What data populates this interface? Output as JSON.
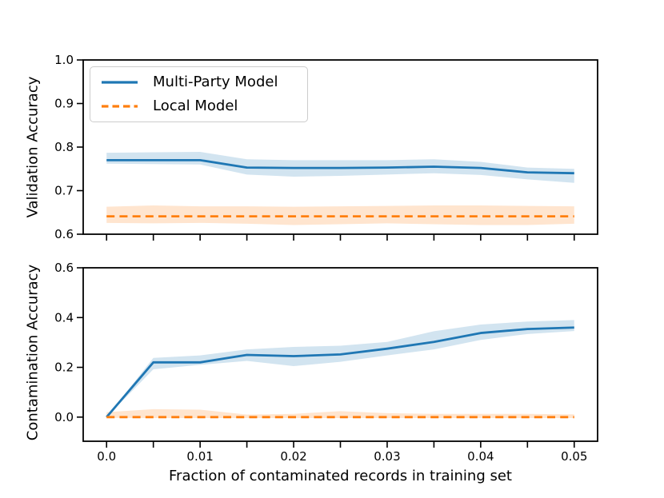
{
  "figure": {
    "background": "#ffffff",
    "text_color": "#000000",
    "spine_color": "#000000"
  },
  "chart_data": [
    {
      "type": "line",
      "title": "",
      "xlabel": "",
      "ylabel": "Validation Accuracy",
      "grid": false,
      "legend_position": "upper left",
      "xlim": [
        -0.0025,
        0.0525
      ],
      "ylim": [
        0.6,
        1.0
      ],
      "x": [
        0,
        0.005,
        0.01,
        0.015,
        0.02,
        0.025,
        0.03,
        0.035,
        0.04,
        0.045,
        0.05
      ],
      "xticks": {
        "values": [
          0,
          0.005,
          0.01,
          0.015,
          0.02,
          0.025,
          0.03,
          0.035,
          0.04,
          0.045,
          0.05
        ],
        "labels": [
          "",
          "",
          "",
          "",
          "",
          "",
          "",
          "",
          "",
          "",
          ""
        ]
      },
      "yticks": {
        "values": [
          1.0,
          0.9,
          0.8,
          0.7,
          0.6
        ],
        "labels": [
          "1.0",
          "0.9",
          "0.8",
          "0.7",
          "0.6"
        ]
      },
      "series": [
        {
          "name": "Multi-Party Model",
          "color": "#1f77b4",
          "line_style": "solid",
          "band_opacity": 0.2,
          "values": [
            0.77,
            0.77,
            0.77,
            0.753,
            0.752,
            0.752,
            0.753,
            0.755,
            0.752,
            0.742,
            0.74
          ],
          "band_upper": [
            0.787,
            0.788,
            0.789,
            0.772,
            0.77,
            0.77,
            0.77,
            0.772,
            0.766,
            0.753,
            0.75
          ],
          "band_lower": [
            0.762,
            0.761,
            0.76,
            0.737,
            0.732,
            0.734,
            0.737,
            0.74,
            0.736,
            0.726,
            0.718
          ]
        },
        {
          "name": "Local Model",
          "color": "#ff7f0e",
          "line_style": "dashed",
          "band_opacity": 0.2,
          "values": [
            0.641,
            0.641,
            0.641,
            0.641,
            0.641,
            0.641,
            0.641,
            0.641,
            0.641,
            0.641,
            0.641
          ],
          "band_upper": [
            0.663,
            0.666,
            0.664,
            0.664,
            0.663,
            0.664,
            0.665,
            0.666,
            0.666,
            0.665,
            0.664
          ],
          "band_lower": [
            0.626,
            0.625,
            0.626,
            0.624,
            0.621,
            0.623,
            0.625,
            0.623,
            0.621,
            0.621,
            0.624
          ]
        }
      ]
    },
    {
      "type": "line",
      "title": "",
      "xlabel": "Fraction of contaminated records in training set",
      "ylabel": "Contamination Accuracy",
      "grid": false,
      "xlim": [
        -0.0025,
        0.0525
      ],
      "ylim": [
        -0.097,
        0.6
      ],
      "x": [
        0,
        0.005,
        0.01,
        0.015,
        0.02,
        0.025,
        0.03,
        0.035,
        0.04,
        0.045,
        0.05
      ],
      "xticks": {
        "values": [
          0,
          0.005,
          0.01,
          0.015,
          0.02,
          0.025,
          0.03,
          0.035,
          0.04,
          0.045,
          0.05
        ],
        "labels": [
          "0.0",
          "",
          "0.01",
          "",
          "0.02",
          "",
          "0.03",
          "",
          "0.04",
          "",
          "0.05"
        ]
      },
      "yticks": {
        "values": [
          0.6,
          0.4,
          0.2,
          0.0
        ],
        "labels": [
          "0.6",
          "0.4",
          "0.2",
          "0.0"
        ]
      },
      "series": [
        {
          "name": "Multi-Party Model",
          "color": "#1f77b4",
          "line_style": "solid",
          "band_opacity": 0.2,
          "values": [
            0.0,
            0.22,
            0.22,
            0.25,
            0.245,
            0.252,
            0.275,
            0.302,
            0.338,
            0.354,
            0.36
          ],
          "band_upper": [
            0.0,
            0.238,
            0.248,
            0.272,
            0.282,
            0.287,
            0.302,
            0.345,
            0.372,
            0.384,
            0.39
          ],
          "band_lower": [
            0.0,
            0.192,
            0.21,
            0.226,
            0.205,
            0.222,
            0.248,
            0.272,
            0.31,
            0.334,
            0.346
          ]
        },
        {
          "name": "Local Model",
          "color": "#ff7f0e",
          "line_style": "dashed",
          "band_opacity": 0.2,
          "values": [
            0.0,
            0.0,
            0.0,
            0.0,
            0.0,
            0.0,
            0.0,
            0.0,
            0.0,
            0.0,
            0.0
          ],
          "band_upper": [
            0.02,
            0.032,
            0.03,
            0.01,
            0.013,
            0.024,
            0.016,
            0.013,
            0.013,
            0.013,
            0.011
          ],
          "band_lower": [
            -0.003,
            -0.004,
            -0.004,
            -0.004,
            -0.004,
            -0.004,
            -0.004,
            -0.004,
            -0.004,
            -0.004,
            -0.004
          ]
        }
      ]
    }
  ]
}
